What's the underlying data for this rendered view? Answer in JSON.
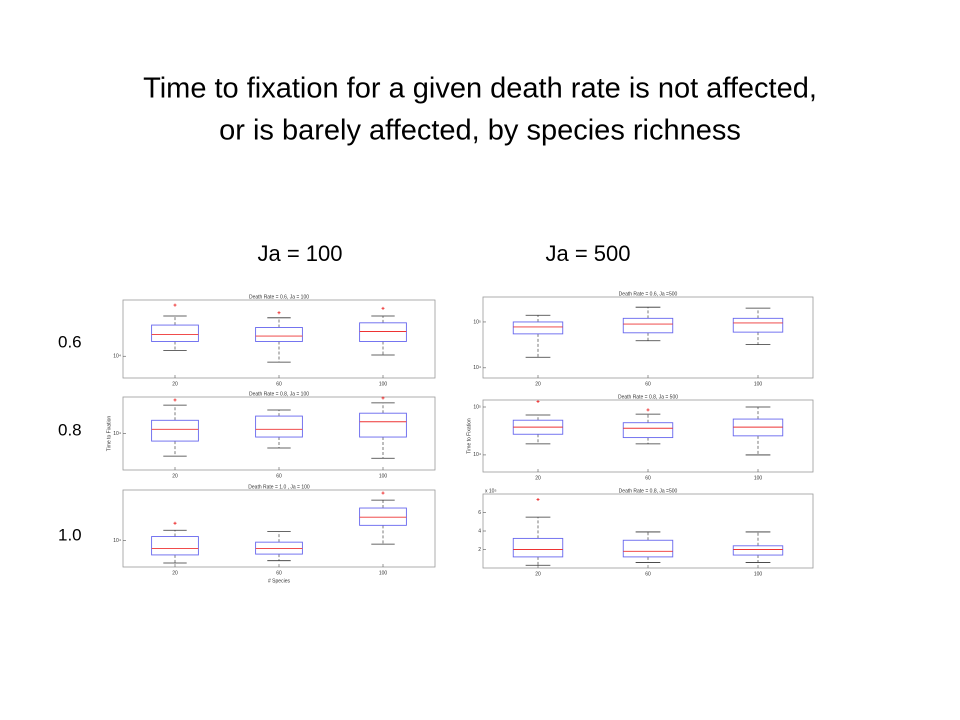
{
  "title_lines": [
    "Time to fixation for a given death rate is not affected,",
    "or is barely affected, by species richness"
  ],
  "columns": [
    "Ja = 100",
    "Ja = 500"
  ],
  "rows": [
    "0.6",
    "0.8",
    "1.0"
  ],
  "chart_data": [
    {
      "type": "box",
      "title": "Death Rate = 0.6, Ja = 100",
      "categories": [
        "20",
        "60",
        "100"
      ],
      "log": true,
      "ylim": [
        5000,
        60000
      ],
      "yticks": [
        {
          "value": 10000,
          "label": "10⁴"
        }
      ],
      "boxes": [
        {
          "low": 12000,
          "q1": 16000,
          "median": 20000,
          "q3": 27000,
          "high": 36000,
          "outliers": [
            51000
          ]
        },
        {
          "low": 8300,
          "q1": 16000,
          "median": 19000,
          "q3": 25000,
          "high": 34000,
          "outliers": [
            40000
          ]
        },
        {
          "low": 10400,
          "q1": 16000,
          "median": 22000,
          "q3": 29000,
          "high": 36000,
          "outliers": [
            46000
          ]
        }
      ]
    },
    {
      "type": "box",
      "title": "Death Rate = 0.8, Ja = 100",
      "ylabel": "Time to Fixation",
      "categories": [
        "20",
        "60",
        "100"
      ],
      "log": true,
      "ylim": [
        1000,
        100000
      ],
      "yticks": [
        {
          "value": 10000,
          "label": "10⁴"
        }
      ],
      "boxes": [
        {
          "low": 2400,
          "q1": 6200,
          "median": 13000,
          "q3": 23000,
          "high": 60000,
          "outliers": [
            83000
          ]
        },
        {
          "low": 4000,
          "q1": 8000,
          "median": 13000,
          "q3": 30000,
          "high": 44000,
          "outliers": []
        },
        {
          "low": 2100,
          "q1": 8000,
          "median": 21000,
          "q3": 36000,
          "high": 69000,
          "outliers": [
            94000
          ]
        }
      ]
    },
    {
      "type": "box",
      "title": "Death Rate = 1.0 , Ja = 100",
      "xlabel": "# Species",
      "categories": [
        "20",
        "60",
        "100"
      ],
      "log": true,
      "ylim": [
        3000,
        100000
      ],
      "yticks": [
        {
          "value": 10000,
          "label": "10⁴"
        }
      ],
      "boxes": [
        {
          "low": 3600,
          "q1": 5200,
          "median": 7000,
          "q3": 12000,
          "high": 16000,
          "outliers": [
            22000
          ]
        },
        {
          "low": 4000,
          "q1": 5400,
          "median": 7000,
          "q3": 9300,
          "high": 15000,
          "outliers": []
        },
        {
          "low": 8500,
          "q1": 20000,
          "median": 29000,
          "q3": 44000,
          "high": 63000,
          "outliers": [
            87000
          ]
        }
      ]
    },
    {
      "type": "box",
      "title": "Death Rate = 0.6, Ja =500",
      "categories": [
        "20",
        "60",
        "100"
      ],
      "log": true,
      "ylim": [
        6000,
        350000
      ],
      "yticks": [
        {
          "value": 10000,
          "label": "10⁴"
        },
        {
          "value": 100000,
          "label": "10⁵"
        }
      ],
      "boxes": [
        {
          "low": 17000,
          "q1": 55000,
          "median": 78000,
          "q3": 100000,
          "high": 140000,
          "outliers": []
        },
        {
          "low": 39000,
          "q1": 58000,
          "median": 90000,
          "q3": 120000,
          "high": 210000,
          "outliers": []
        },
        {
          "low": 32000,
          "q1": 60000,
          "median": 95000,
          "q3": 120000,
          "high": 200000,
          "outliers": []
        }
      ]
    },
    {
      "type": "box",
      "title": "Death Rate = 0.8, Ja = 500",
      "ylabel": "Time to Fixation",
      "categories": [
        "20",
        "60",
        "100"
      ],
      "log": true,
      "ylim": [
        4400,
        140000
      ],
      "yticks": [
        {
          "value": 10000,
          "label": "10⁴"
        },
        {
          "value": 100000,
          "label": "10⁵"
        }
      ],
      "boxes": [
        {
          "low": 17000,
          "q1": 27000,
          "median": 38000,
          "q3": 53000,
          "high": 68000,
          "outliers": [
            130000
          ]
        },
        {
          "low": 17000,
          "q1": 23000,
          "median": 36000,
          "q3": 47000,
          "high": 71000,
          "outliers": [
            87000
          ]
        },
        {
          "low": 10000,
          "q1": 25000,
          "median": 38000,
          "q3": 56000,
          "high": 100000,
          "outliers": []
        }
      ]
    },
    {
      "type": "box",
      "title": "Death Rate = 0.8, Ja =500",
      "multiplier": "x 10⁵",
      "categories": [
        "20",
        "60",
        "100"
      ],
      "log": false,
      "ylim": [
        0,
        8
      ],
      "yticks": [
        2,
        4,
        6
      ],
      "boxes": [
        {
          "low": 0.3,
          "q1": 1.2,
          "median": 2.0,
          "q3": 3.2,
          "high": 5.5,
          "outliers": [
            7.4
          ]
        },
        {
          "low": 0.6,
          "q1": 1.2,
          "median": 1.8,
          "q3": 3.0,
          "high": 3.9,
          "outliers": []
        },
        {
          "low": 0.6,
          "q1": 1.4,
          "median": 2.0,
          "q3": 2.4,
          "high": 3.9,
          "outliers": []
        }
      ]
    }
  ]
}
